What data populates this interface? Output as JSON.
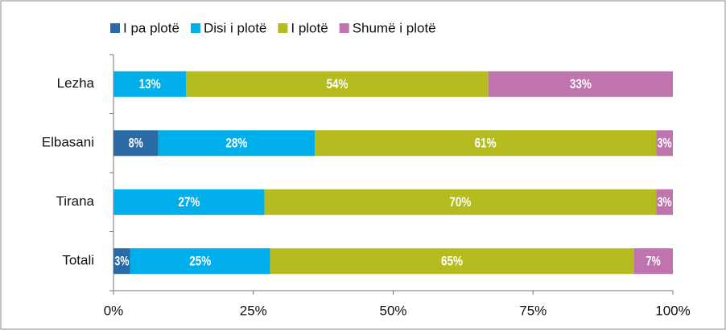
{
  "chart_data": {
    "type": "stacked_barh",
    "categories": [
      "Lezha",
      "Elbasani",
      "Tirana",
      "Totali"
    ],
    "series": [
      {
        "name": "I pa plotë",
        "color": "#2a6aa6",
        "values": [
          null,
          8,
          null,
          3
        ],
        "value_labels": [
          null,
          "8%",
          null,
          "3%"
        ]
      },
      {
        "name": "Disi i plotë",
        "color": "#00aeeb",
        "values": [
          13,
          28,
          27,
          25
        ],
        "value_labels": [
          "13%",
          "28%",
          "27%",
          "25%"
        ]
      },
      {
        "name": "I plotë",
        "color": "#b4bc1f",
        "values": [
          54,
          61,
          70,
          65
        ],
        "value_labels": [
          "54%",
          "61%",
          "70%",
          "65%"
        ]
      },
      {
        "name": "Shumë i plotë",
        "color": "#c074ae",
        "values": [
          33,
          3,
          3,
          7
        ],
        "value_labels": [
          "33%",
          "3%",
          "3%",
          "7%"
        ]
      }
    ],
    "xlim": [
      0,
      100
    ],
    "xticks": [
      {
        "value": 0,
        "label": "0%"
      },
      {
        "value": 25,
        "label": "25%"
      },
      {
        "value": 50,
        "label": "50%"
      },
      {
        "value": 75,
        "label": "75%"
      },
      {
        "value": 100,
        "label": "100%"
      }
    ],
    "legend": "top"
  }
}
